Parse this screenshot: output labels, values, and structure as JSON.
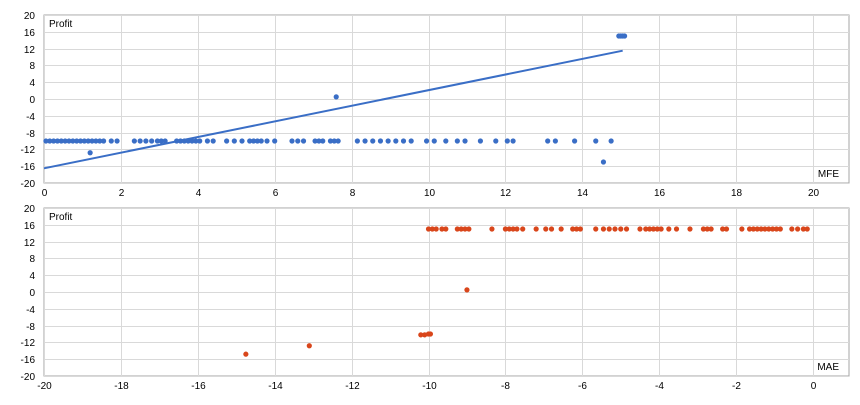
{
  "colors": {
    "mfe_series": "#3a6ec6",
    "mae_series": "#d9461b",
    "grid": "#d9d9d9",
    "frame": "#a6a6a6",
    "text": "#000000"
  },
  "chart_data": [
    {
      "type": "scatter",
      "ylabel": "Profit",
      "xlabel": "MFE",
      "xlim": [
        0,
        20
      ],
      "ylim": [
        -20,
        20
      ],
      "xticks": [
        0,
        2,
        4,
        6,
        8,
        10,
        12,
        14,
        16,
        18,
        20
      ],
      "yticks": [
        -20,
        -16,
        -12,
        -8,
        -4,
        0,
        4,
        8,
        12,
        16,
        20
      ],
      "grid": true,
      "trendline": {
        "x": [
          0,
          15.05
        ],
        "y": [
          -16.5,
          11.5
        ]
      },
      "series": [
        {
          "points": [
            [
              0.05,
              -10
            ],
            [
              0.15,
              -10
            ],
            [
              0.25,
              -10
            ],
            [
              0.35,
              -10
            ],
            [
              0.45,
              -10
            ],
            [
              0.55,
              -10
            ],
            [
              0.65,
              -10
            ],
            [
              0.75,
              -10
            ],
            [
              0.85,
              -10
            ],
            [
              0.95,
              -10
            ],
            [
              1.05,
              -10
            ],
            [
              1.15,
              -10
            ],
            [
              1.25,
              -10
            ],
            [
              1.35,
              -10
            ],
            [
              1.45,
              -10
            ],
            [
              1.55,
              -10
            ],
            [
              1.75,
              -10
            ],
            [
              1.9,
              -10
            ],
            [
              1.2,
              -12.8
            ],
            [
              2.35,
              -10
            ],
            [
              2.5,
              -10
            ],
            [
              2.65,
              -10
            ],
            [
              2.8,
              -10
            ],
            [
              2.95,
              -10
            ],
            [
              3.05,
              -10
            ],
            [
              3.15,
              -10
            ],
            [
              3.45,
              -10
            ],
            [
              3.55,
              -10
            ],
            [
              3.65,
              -10
            ],
            [
              3.75,
              -10
            ],
            [
              3.85,
              -10
            ],
            [
              3.95,
              -10
            ],
            [
              4.05,
              -10
            ],
            [
              4.25,
              -10
            ],
            [
              4.4,
              -10
            ],
            [
              4.75,
              -10
            ],
            [
              4.95,
              -10
            ],
            [
              5.15,
              -10
            ],
            [
              5.35,
              -10
            ],
            [
              5.45,
              -10
            ],
            [
              5.55,
              -10
            ],
            [
              5.65,
              -10
            ],
            [
              5.8,
              -10
            ],
            [
              6.0,
              -10
            ],
            [
              6.45,
              -10
            ],
            [
              6.6,
              -10
            ],
            [
              6.75,
              -10
            ],
            [
              7.05,
              -10
            ],
            [
              7.15,
              -10
            ],
            [
              7.25,
              -10
            ],
            [
              7.45,
              -10
            ],
            [
              7.55,
              -10
            ],
            [
              7.65,
              -10
            ],
            [
              7.6,
              0.5
            ],
            [
              8.15,
              -10
            ],
            [
              8.35,
              -10
            ],
            [
              8.55,
              -10
            ],
            [
              8.75,
              -10
            ],
            [
              8.95,
              -10
            ],
            [
              9.15,
              -10
            ],
            [
              9.35,
              -10
            ],
            [
              9.55,
              -10
            ],
            [
              9.95,
              -10
            ],
            [
              10.15,
              -10
            ],
            [
              10.45,
              -10
            ],
            [
              10.75,
              -10
            ],
            [
              10.95,
              -10
            ],
            [
              11.35,
              -10
            ],
            [
              11.75,
              -10
            ],
            [
              12.05,
              -10
            ],
            [
              12.2,
              -10
            ],
            [
              13.1,
              -10
            ],
            [
              13.3,
              -10
            ],
            [
              13.8,
              -10
            ],
            [
              14.35,
              -10
            ],
            [
              14.75,
              -10
            ],
            [
              14.55,
              -15
            ],
            [
              14.95,
              15
            ],
            [
              15.0,
              15
            ],
            [
              15.05,
              15
            ],
            [
              15.1,
              15
            ]
          ]
        }
      ]
    },
    {
      "type": "scatter",
      "ylabel": "Profit",
      "xlabel": "MAE",
      "xlim": [
        -20,
        0
      ],
      "ylim": [
        -20,
        20
      ],
      "xticks": [
        -20,
        -18,
        -16,
        -14,
        -12,
        -10,
        -8,
        -6,
        -4,
        -2,
        0
      ],
      "yticks": [
        -20,
        -16,
        -12,
        -8,
        -4,
        0,
        4,
        8,
        12,
        16,
        20
      ],
      "grid": true,
      "series": [
        {
          "points": [
            [
              -14.75,
              -14.8
            ],
            [
              -13.1,
              -12.8
            ],
            [
              -10.2,
              -10.2
            ],
            [
              -10.1,
              -10.2
            ],
            [
              -10.0,
              -10
            ],
            [
              -9.95,
              -10
            ],
            [
              -9.0,
              0.5
            ],
            [
              -10.0,
              15
            ],
            [
              -9.9,
              15
            ],
            [
              -9.8,
              15
            ],
            [
              -9.65,
              15
            ],
            [
              -9.55,
              15
            ],
            [
              -9.25,
              15
            ],
            [
              -9.15,
              15
            ],
            [
              -9.05,
              15
            ],
            [
              -8.95,
              15
            ],
            [
              -8.35,
              15
            ],
            [
              -8.0,
              15
            ],
            [
              -7.9,
              15
            ],
            [
              -7.8,
              15
            ],
            [
              -7.7,
              15
            ],
            [
              -7.55,
              15
            ],
            [
              -7.2,
              15
            ],
            [
              -6.95,
              15
            ],
            [
              -6.8,
              15
            ],
            [
              -6.55,
              15
            ],
            [
              -6.25,
              15
            ],
            [
              -6.15,
              15
            ],
            [
              -6.05,
              15
            ],
            [
              -5.65,
              15
            ],
            [
              -5.45,
              15
            ],
            [
              -5.3,
              15
            ],
            [
              -5.15,
              15
            ],
            [
              -5.0,
              15
            ],
            [
              -4.85,
              15
            ],
            [
              -4.5,
              15
            ],
            [
              -4.35,
              15
            ],
            [
              -4.25,
              15
            ],
            [
              -4.15,
              15
            ],
            [
              -4.05,
              15
            ],
            [
              -3.95,
              15
            ],
            [
              -3.75,
              15
            ],
            [
              -3.55,
              15
            ],
            [
              -3.2,
              15
            ],
            [
              -2.85,
              15
            ],
            [
              -2.75,
              15
            ],
            [
              -2.65,
              15
            ],
            [
              -2.35,
              15
            ],
            [
              -2.25,
              15
            ],
            [
              -1.85,
              15
            ],
            [
              -1.65,
              15
            ],
            [
              -1.55,
              15
            ],
            [
              -1.45,
              15
            ],
            [
              -1.35,
              15
            ],
            [
              -1.25,
              15
            ],
            [
              -1.15,
              15
            ],
            [
              -1.05,
              15
            ],
            [
              -0.95,
              15
            ],
            [
              -0.85,
              15
            ],
            [
              -0.55,
              15
            ],
            [
              -0.4,
              15
            ],
            [
              -0.25,
              15
            ],
            [
              -0.15,
              15
            ]
          ]
        }
      ]
    }
  ]
}
